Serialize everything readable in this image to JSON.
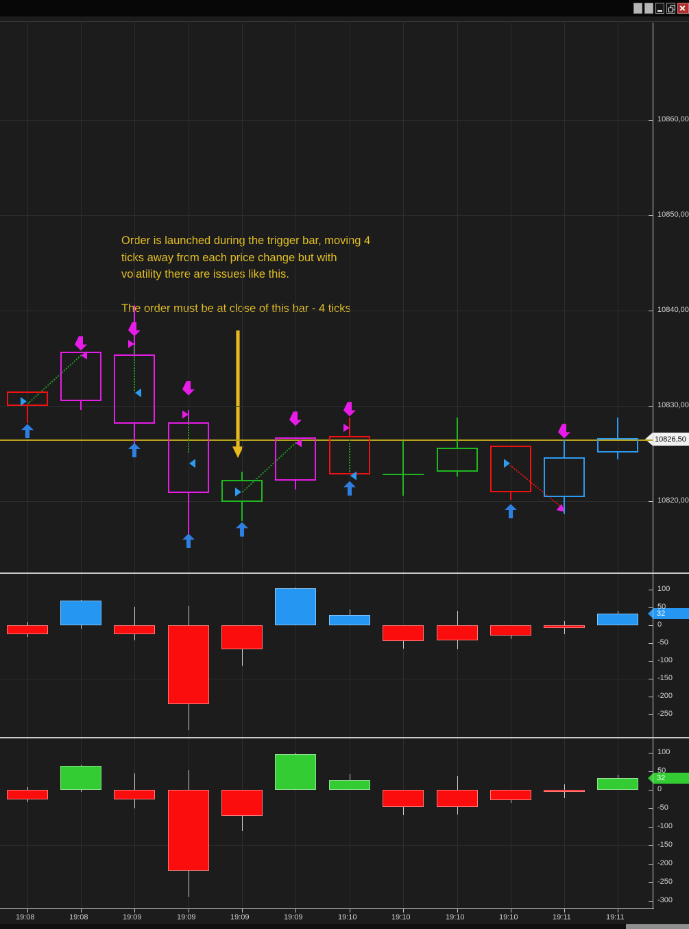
{
  "window": {
    "titlebar": "",
    "controls": [
      {
        "name": "window-button-1",
        "type": "blank"
      },
      {
        "name": "window-button-2",
        "type": "blank"
      },
      {
        "name": "minimize-button",
        "type": "minimize"
      },
      {
        "name": "restore-button",
        "type": "restore"
      },
      {
        "name": "close-button",
        "type": "close"
      }
    ]
  },
  "annotations": {
    "paragraph1": "Order is launched during the trigger bar, moving 4\nticks away from each price change but with\nvolatility there are issues like this.",
    "paragraph2": "The order must be at close of this bar - 4 ticks"
  },
  "colors": {
    "background": "#1c1c1c",
    "grid": "#2e2e2e",
    "axis_line": "#c9c9c9",
    "axis_text": "#d4d4d4",
    "magenta": "#e81ce8",
    "red": "#ef1212",
    "green": "#1fb821",
    "blue": "#2d9bf0",
    "arrow_blue": "#2e7fe0",
    "bar_red": "#fb0d0d",
    "bar_blue": "#2596f2",
    "bar_green": "#33cc33",
    "bar_wick": "#cfcfcf",
    "dotted_green": "#1fa11f",
    "dotted_red": "#e01616",
    "yellow_line": "#b9a11b",
    "annotation_yellow": "#e3bf25",
    "arrow_yellow": "#e8b821",
    "price_tag_bg": "#f2f2f2"
  },
  "chart_data": [
    {
      "type": "candlestick",
      "panel": "main-price-panel",
      "x_categories": [
        "19:08",
        "19:08",
        "19:09",
        "19:09",
        "19:09",
        "19:09",
        "19:10",
        "19:10",
        "19:10",
        "19:10",
        "19:11",
        "19:11"
      ],
      "y_ticks": [
        {
          "label": "10860,00",
          "value": 10860
        },
        {
          "label": "10850,00",
          "value": 10850
        },
        {
          "label": "10840,00",
          "value": 10840
        },
        {
          "label": "10830,00",
          "value": 10830
        },
        {
          "label": "10820,00",
          "value": 10820
        }
      ],
      "current_price": {
        "label": "10826,50",
        "value": 10826.5
      },
      "horizontal_line_price": 10826.5,
      "candles": [
        {
          "time": "19:08",
          "body_top": 10831.5,
          "body_bottom": 10830.0,
          "high": 10831.5,
          "low": 10828.2,
          "color": "red",
          "markers": [
            {
              "type": "entry-right",
              "price": 10830.5
            },
            {
              "type": "up-arrow",
              "price": 10828.1
            }
          ]
        },
        {
          "time": "19:08",
          "body_top": 10835.7,
          "body_bottom": 10830.5,
          "high": 10835.7,
          "low": 10829.6,
          "color": "magenta",
          "markers": [
            {
              "type": "down-arrow",
              "price": 10835.8
            },
            {
              "type": "flag-left",
              "price": 10835.3
            }
          ]
        },
        {
          "time": "19:09",
          "body_top": 10835.4,
          "body_bottom": 10828.1,
          "high": 10840.6,
          "low": 10825.5,
          "color": "magenta",
          "markers": [
            {
              "type": "down-arrow",
              "price": 10837.3
            },
            {
              "type": "flag-right",
              "price": 10836.5
            },
            {
              "type": "entry-left",
              "price": 10831.4
            },
            {
              "type": "up-arrow",
              "price": 10826.1
            }
          ],
          "dotted_vertical": [
            10836.3,
            10831.6
          ]
        },
        {
          "time": "19:09",
          "body_top": 10828.3,
          "body_bottom": 10820.9,
          "high": 10829.6,
          "low": 10816.3,
          "color": "magenta",
          "markers": [
            {
              "type": "down-arrow",
              "price": 10831.1
            },
            {
              "type": "flag-right",
              "price": 10829.1
            },
            {
              "type": "entry-left",
              "price": 10824.0
            },
            {
              "type": "up-arrow",
              "price": 10816.6
            }
          ],
          "dotted_vertical": [
            10828.7,
            10825.1
          ]
        },
        {
          "time": "19:09",
          "body_top": 10822.2,
          "body_bottom": 10819.9,
          "high": 10823.1,
          "low": 10817.9,
          "color": "green",
          "markers": [
            {
              "type": "entry-right",
              "price": 10821.0
            },
            {
              "type": "up-arrow",
              "price": 10817.8
            }
          ]
        },
        {
          "time": "19:09",
          "body_top": 10826.7,
          "body_bottom": 10822.2,
          "high": 10826.7,
          "low": 10821.2,
          "color": "magenta",
          "markers": [
            {
              "type": "down-arrow",
              "price": 10827.9
            },
            {
              "type": "flag-left",
              "price": 10826.1
            }
          ]
        },
        {
          "time": "19:10",
          "body_top": 10826.8,
          "body_bottom": 10822.8,
          "high": 10828.8,
          "low": 10822.8,
          "color": "red",
          "markers": [
            {
              "type": "down-arrow",
              "price": 10828.9
            },
            {
              "type": "flag-right",
              "price": 10827.7
            },
            {
              "type": "entry-left",
              "price": 10822.7
            },
            {
              "type": "up-arrow",
              "price": 10822.1
            }
          ],
          "dotted_vertical": [
            10826.5,
            10823.1
          ]
        },
        {
          "time": "19:10",
          "doji": true,
          "body_top": 10822.8,
          "body_bottom": 10822.8,
          "high": 10826.3,
          "low": 10820.6,
          "color": "green",
          "markers": []
        },
        {
          "time": "19:10",
          "body_top": 10825.6,
          "body_bottom": 10823.1,
          "high": 10828.8,
          "low": 10822.6,
          "color": "green",
          "markers": []
        },
        {
          "time": "19:10",
          "body_top": 10825.8,
          "body_bottom": 10820.9,
          "high": 10825.8,
          "low": 10820.1,
          "color": "red",
          "markers": [
            {
              "type": "entry-right",
              "price": 10824.0
            },
            {
              "type": "up-arrow",
              "price": 10819.7
            }
          ]
        },
        {
          "time": "19:11",
          "body_top": 10824.6,
          "body_bottom": 10820.4,
          "high": 10826.5,
          "low": 10818.6,
          "color": "blue",
          "markers": [
            {
              "type": "down-arrow",
              "price": 10826.6
            }
          ]
        },
        {
          "time": "19:11",
          "body_top": 10826.6,
          "body_bottom": 10825.1,
          "high": 10828.8,
          "low": 10824.4,
          "color": "blue",
          "markers": []
        }
      ],
      "diagonals": [
        {
          "from_bar": 0,
          "from_price": 10830.3,
          "to_bar": 1,
          "to_price": 10835.4,
          "color": "green",
          "style": "dotted"
        },
        {
          "from_bar": 4,
          "from_price": 10821.0,
          "to_bar": 5,
          "to_price": 10826.2,
          "color": "green",
          "style": "dotted"
        },
        {
          "from_bar": 9,
          "from_price": 10823.8,
          "to_bar": 10,
          "to_price": 10819.2,
          "color": "red",
          "style": "dotted",
          "arrow_end": true
        }
      ]
    },
    {
      "type": "bar",
      "panel": "indicator-panel-1",
      "positive_color": "#2596f2",
      "negative_color": "#fb0d0d",
      "y_ticks": [
        {
          "label": "100",
          "value": 100
        },
        {
          "label": "50",
          "value": 50
        },
        {
          "label": "0",
          "value": 0
        },
        {
          "label": "-50",
          "value": -50
        },
        {
          "label": "-100",
          "value": -100
        },
        {
          "label": "-150",
          "value": -150
        },
        {
          "label": "-200",
          "value": -200
        },
        {
          "label": "-250",
          "value": -250
        }
      ],
      "last_value_marker": {
        "label": "32",
        "value": 32
      },
      "bars": [
        {
          "value": -25,
          "high": 10,
          "low": -32
        },
        {
          "value": 70,
          "high": 72,
          "low": -8
        },
        {
          "value": -25,
          "high": 52,
          "low": -42
        },
        {
          "value": -222,
          "high": 54,
          "low": -294
        },
        {
          "value": -68,
          "high": null,
          "low": -113
        },
        {
          "value": 104,
          "high": 106,
          "low": null
        },
        {
          "value": 29,
          "high": 44,
          "low": null
        },
        {
          "value": -44,
          "high": null,
          "low": -65
        },
        {
          "value": -42,
          "high": 40,
          "low": -67
        },
        {
          "value": -28,
          "high": null,
          "low": -38
        },
        {
          "value": -7,
          "high": 12,
          "low": -25
        },
        {
          "value": 32,
          "high": 40,
          "low": null
        }
      ]
    },
    {
      "type": "bar",
      "panel": "indicator-panel-2",
      "positive_color": "#33cc33",
      "negative_color": "#fb0d0d",
      "y_ticks": [
        {
          "label": "100",
          "value": 100
        },
        {
          "label": "50",
          "value": 50
        },
        {
          "label": "0",
          "value": 0
        },
        {
          "label": "-50",
          "value": -50
        },
        {
          "label": "-100",
          "value": -100
        },
        {
          "label": "-150",
          "value": -150
        },
        {
          "label": "-200",
          "value": -200
        },
        {
          "label": "-250",
          "value": -250
        },
        {
          "label": "-300",
          "value": -300
        }
      ],
      "last_value_marker": {
        "label": "32",
        "value": 32
      },
      "bars": [
        {
          "value": -25,
          "high": 8,
          "low": -32
        },
        {
          "value": 65,
          "high": 67,
          "low": -5
        },
        {
          "value": -25,
          "high": 45,
          "low": -50
        },
        {
          "value": -219,
          "high": 53,
          "low": -289
        },
        {
          "value": -70,
          "high": null,
          "low": -111
        },
        {
          "value": 96,
          "high": 100,
          "low": null
        },
        {
          "value": 26,
          "high": 42,
          "low": null
        },
        {
          "value": -46,
          "high": null,
          "low": -68
        },
        {
          "value": -46,
          "high": 37,
          "low": -67
        },
        {
          "value": -28,
          "high": null,
          "low": -35
        },
        {
          "value": -5,
          "high": 15,
          "low": -22
        },
        {
          "value": 32,
          "high": 40,
          "low": null
        }
      ]
    }
  ]
}
